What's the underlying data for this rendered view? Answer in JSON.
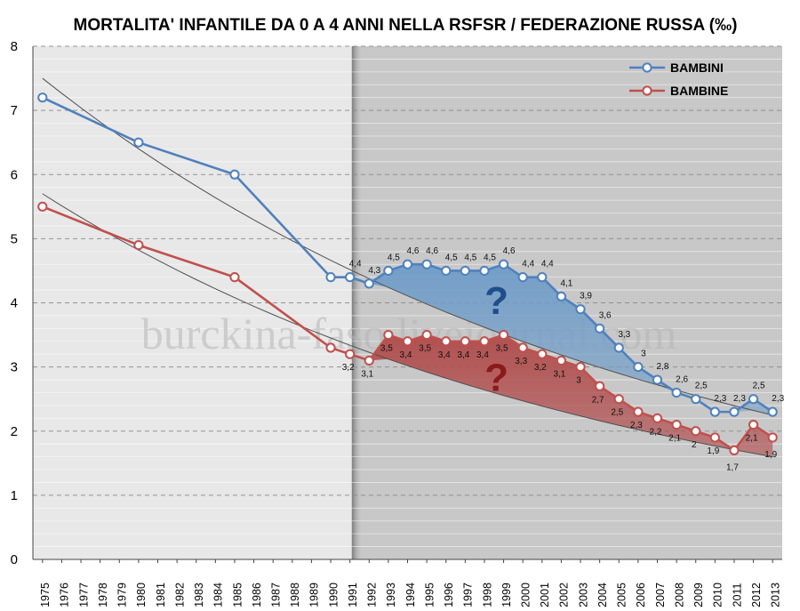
{
  "title": "MORTALITA' INFANTILE DA 0 A 4 ANNI NELLA RSFSR / FEDERAZIONE RUSSA (‰)",
  "watermark": "burckina-faso.livejournal.com",
  "chart_data": {
    "type": "line",
    "title": "MORTALITA' INFANTILE DA 0 A 4 ANNI NELLA RSFSR / FEDERAZIONE RUSSA (‰)",
    "xlabel": "",
    "ylabel": "",
    "ylim": [
      0,
      8
    ],
    "yticks": [
      "0",
      "1",
      "2",
      "3",
      "4",
      "5",
      "6",
      "7",
      "8"
    ],
    "categories": [
      "1975",
      "1976",
      "1977",
      "1978",
      "1979",
      "1980",
      "1981",
      "1982",
      "1983",
      "1984",
      "1985",
      "1986",
      "1987",
      "1988",
      "1989",
      "1990",
      "1991",
      "1992",
      "1993",
      "1994",
      "1995",
      "1996",
      "1997",
      "1998",
      "1999",
      "2000",
      "2001",
      "2002",
      "2003",
      "2004",
      "2005",
      "2006",
      "2007",
      "2008",
      "2009",
      "2010",
      "2011",
      "2012",
      "2013"
    ],
    "shaded_region_start": "1991",
    "grid": true,
    "legend_position": "top-right",
    "colors": {
      "bambini": "#4f81bd",
      "bambine": "#c0504d",
      "area_bambini": "#6f9cc8",
      "area_bambine": "#b04a4a",
      "trend": "#505050",
      "bg_left": "#e8e8e8",
      "bg_right": "#c8c8c8"
    },
    "series": [
      {
        "name": "BAMBINI",
        "key": "bambini",
        "points": [
          {
            "x": "1975",
            "y": 7.2
          },
          {
            "x": "1980",
            "y": 6.5
          },
          {
            "x": "1985",
            "y": 6.0
          },
          {
            "x": "1990",
            "y": 4.4
          },
          {
            "x": "1991",
            "y": 4.4,
            "label": "4,4"
          },
          {
            "x": "1992",
            "y": 4.3,
            "label": "4,3"
          },
          {
            "x": "1993",
            "y": 4.5,
            "label": "4,5"
          },
          {
            "x": "1994",
            "y": 4.6,
            "label": "4,6"
          },
          {
            "x": "1995",
            "y": 4.6,
            "label": "4,6"
          },
          {
            "x": "1996",
            "y": 4.5,
            "label": "4,5"
          },
          {
            "x": "1997",
            "y": 4.5,
            "label": "4,5"
          },
          {
            "x": "1998",
            "y": 4.5,
            "label": "4,5"
          },
          {
            "x": "1999",
            "y": 4.6,
            "label": "4,6"
          },
          {
            "x": "2000",
            "y": 4.4,
            "label": "4,4"
          },
          {
            "x": "2001",
            "y": 4.4,
            "label": "4,4"
          },
          {
            "x": "2002",
            "y": 4.1,
            "label": "4,1"
          },
          {
            "x": "2003",
            "y": 3.9,
            "label": "3,9"
          },
          {
            "x": "2004",
            "y": 3.6,
            "label": "3,6"
          },
          {
            "x": "2005",
            "y": 3.3,
            "label": "3,3"
          },
          {
            "x": "2006",
            "y": 3.0,
            "label": "3"
          },
          {
            "x": "2007",
            "y": 2.8,
            "label": "2,8"
          },
          {
            "x": "2008",
            "y": 2.6,
            "label": "2,6"
          },
          {
            "x": "2009",
            "y": 2.5,
            "label": "2,5"
          },
          {
            "x": "2010",
            "y": 2.3,
            "label": "2,3"
          },
          {
            "x": "2011",
            "y": 2.3,
            "label": "2,3"
          },
          {
            "x": "2012",
            "y": 2.5,
            "label": "2,5"
          },
          {
            "x": "2013",
            "y": 2.3,
            "label": "2,3"
          }
        ],
        "trend": {
          "x0": "1975",
          "y0": 7.5,
          "x1": "2013",
          "y1": 2.25
        }
      },
      {
        "name": "BAMBINE",
        "key": "bambine",
        "points": [
          {
            "x": "1975",
            "y": 5.5
          },
          {
            "x": "1980",
            "y": 4.9
          },
          {
            "x": "1985",
            "y": 4.4
          },
          {
            "x": "1990",
            "y": 3.3
          },
          {
            "x": "1991",
            "y": 3.2,
            "label": "3,2"
          },
          {
            "x": "1992",
            "y": 3.1,
            "label": "3,1"
          },
          {
            "x": "1993",
            "y": 3.5,
            "label": "3,5"
          },
          {
            "x": "1994",
            "y": 3.4,
            "label": "3,4"
          },
          {
            "x": "1995",
            "y": 3.5,
            "label": "3,5"
          },
          {
            "x": "1996",
            "y": 3.4,
            "label": "3,4"
          },
          {
            "x": "1997",
            "y": 3.4,
            "label": "3,4"
          },
          {
            "x": "1998",
            "y": 3.4,
            "label": "3,4"
          },
          {
            "x": "1999",
            "y": 3.5,
            "label": "3,5"
          },
          {
            "x": "2000",
            "y": 3.3,
            "label": "3,3"
          },
          {
            "x": "2001",
            "y": 3.2,
            "label": "3,2"
          },
          {
            "x": "2002",
            "y": 3.1,
            "label": "3,1"
          },
          {
            "x": "2003",
            "y": 3.0,
            "label": "3"
          },
          {
            "x": "2004",
            "y": 2.7,
            "label": "2,7"
          },
          {
            "x": "2005",
            "y": 2.5,
            "label": "2,5"
          },
          {
            "x": "2006",
            "y": 2.3,
            "label": "2,3"
          },
          {
            "x": "2007",
            "y": 2.2,
            "label": "2,2"
          },
          {
            "x": "2008",
            "y": 2.1,
            "label": "2,1"
          },
          {
            "x": "2009",
            "y": 2.0,
            "label": "2"
          },
          {
            "x": "2010",
            "y": 1.9,
            "label": "1,9"
          },
          {
            "x": "2011",
            "y": 1.7,
            "label": "1,7"
          },
          {
            "x": "2012",
            "y": 2.1,
            "label": "2,1"
          },
          {
            "x": "2013",
            "y": 1.9,
            "label": "1,9"
          }
        ],
        "trend": {
          "x0": "1975",
          "y0": 5.7,
          "x1": "2013",
          "y1": 1.6
        }
      }
    ],
    "annotations": [
      {
        "text": "?",
        "x": "1999",
        "y": 4.05,
        "color": "#1f4e8c"
      },
      {
        "text": "?",
        "x": "1999",
        "y": 2.85,
        "color": "#8b1a1a"
      }
    ]
  }
}
